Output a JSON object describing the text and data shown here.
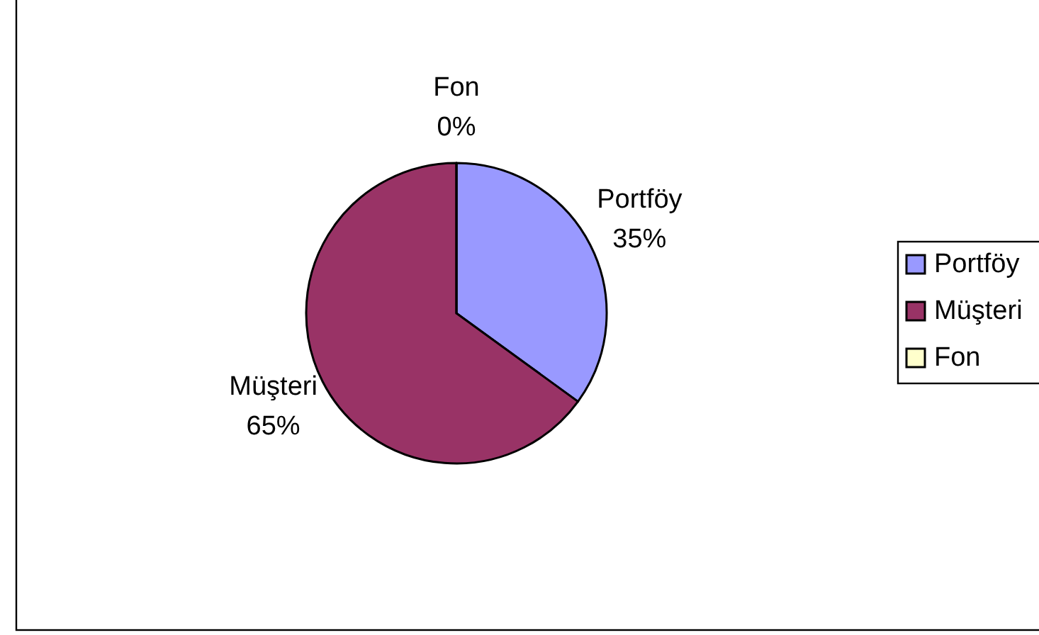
{
  "chart_data": {
    "type": "pie",
    "categories": [
      "Portföy",
      "Müşteri",
      "Fon"
    ],
    "values": [
      35,
      65,
      0
    ],
    "value_labels": [
      "35%",
      "65%",
      "0%"
    ],
    "colors": [
      "#9999ff",
      "#993366",
      "#ffffcc"
    ],
    "legend": "right"
  }
}
